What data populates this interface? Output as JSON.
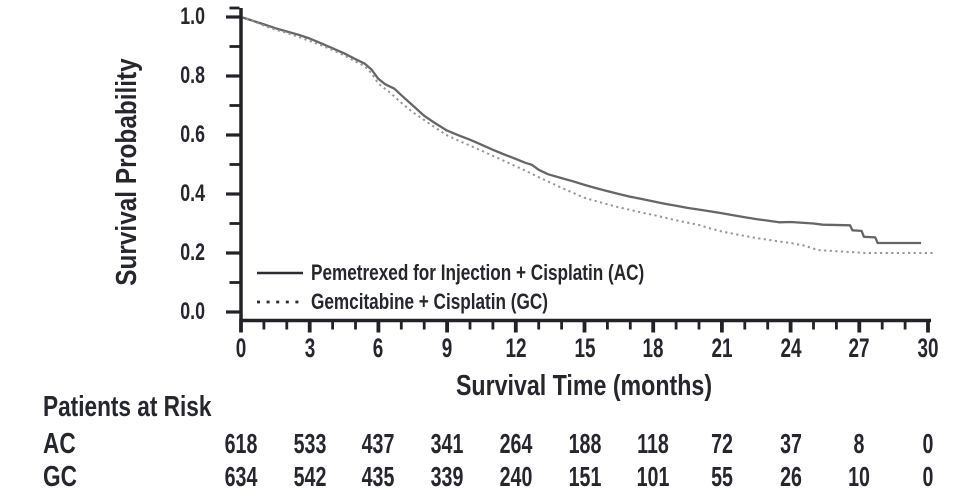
{
  "figure": {
    "background": "#ffffff",
    "text_color": "#26262e",
    "axis_color": "#222229",
    "legend_swatch_color": "#2b2b33"
  },
  "chart_data": {
    "type": "line",
    "subtype": "kaplan-meier-survival",
    "title": "",
    "xlabel": "Survival Time (months)",
    "ylabel": "Survival Probability",
    "xlim": [
      0,
      30
    ],
    "ylim": [
      0.0,
      1.0
    ],
    "grid": false,
    "legend_position": "inside-lower-left",
    "x_major_ticks": [
      0,
      3,
      6,
      9,
      12,
      15,
      18,
      21,
      24,
      27,
      30
    ],
    "x_tick_labels": [
      "0",
      "3",
      "6",
      "9",
      "12",
      "15",
      "18",
      "21",
      "24",
      "27",
      "30"
    ],
    "x_minor_tick_step": 1,
    "y_major_ticks": [
      0.0,
      0.2,
      0.4,
      0.6,
      0.8,
      1.0
    ],
    "y_tick_labels": [
      "0.0",
      "0.2",
      "0.4",
      "0.6",
      "0.8",
      "1.0"
    ],
    "y_minor_tick_step": 0.1,
    "series": [
      {
        "name": "Pemetrexed for Injection + Cisplatin (AC)",
        "abbr": "AC",
        "line_style": "solid",
        "line_color": "#66666a",
        "points": [
          [
            0,
            1.0
          ],
          [
            0.4,
            0.99
          ],
          [
            1,
            0.975
          ],
          [
            1.5,
            0.962
          ],
          [
            2,
            0.951
          ],
          [
            2.5,
            0.94
          ],
          [
            3,
            0.927
          ],
          [
            3.5,
            0.911
          ],
          [
            4,
            0.894
          ],
          [
            4.5,
            0.877
          ],
          [
            5,
            0.857
          ],
          [
            5.4,
            0.842
          ],
          [
            5.7,
            0.822
          ],
          [
            6,
            0.79
          ],
          [
            6.3,
            0.772
          ],
          [
            6.7,
            0.757
          ],
          [
            7,
            0.735
          ],
          [
            7.5,
            0.7
          ],
          [
            8,
            0.665
          ],
          [
            8.5,
            0.639
          ],
          [
            9,
            0.615
          ],
          [
            9.5,
            0.599
          ],
          [
            10,
            0.584
          ],
          [
            10.5,
            0.567
          ],
          [
            11,
            0.55
          ],
          [
            11.5,
            0.534
          ],
          [
            12,
            0.519
          ],
          [
            12.4,
            0.506
          ],
          [
            12.7,
            0.499
          ],
          [
            13,
            0.482
          ],
          [
            13.4,
            0.467
          ],
          [
            14,
            0.454
          ],
          [
            14.5,
            0.443
          ],
          [
            15,
            0.431
          ],
          [
            15.5,
            0.42
          ],
          [
            16,
            0.41
          ],
          [
            16.5,
            0.4
          ],
          [
            17,
            0.391
          ],
          [
            17.5,
            0.383
          ],
          [
            18,
            0.375
          ],
          [
            18.5,
            0.367
          ],
          [
            19,
            0.36
          ],
          [
            19.5,
            0.353
          ],
          [
            20,
            0.347
          ],
          [
            20.5,
            0.341
          ],
          [
            21,
            0.335
          ],
          [
            21.5,
            0.328
          ],
          [
            22,
            0.321
          ],
          [
            22.5,
            0.315
          ],
          [
            23,
            0.31
          ],
          [
            23.5,
            0.304
          ],
          [
            24,
            0.305
          ],
          [
            25,
            0.3
          ],
          [
            25.4,
            0.296
          ],
          [
            26.6,
            0.294
          ],
          [
            26.7,
            0.277
          ],
          [
            27.1,
            0.275
          ],
          [
            27.2,
            0.255
          ],
          [
            27.7,
            0.253
          ],
          [
            27.8,
            0.234
          ],
          [
            29.7,
            0.234
          ]
        ]
      },
      {
        "name": "Gemcitabine + Cisplatin (GC)",
        "abbr": "GC",
        "line_style": "dotted",
        "line_color": "#96969a",
        "points": [
          [
            0,
            1.0
          ],
          [
            0.5,
            0.987
          ],
          [
            1,
            0.971
          ],
          [
            1.5,
            0.957
          ],
          [
            2,
            0.946
          ],
          [
            2.5,
            0.933
          ],
          [
            3,
            0.919
          ],
          [
            3.5,
            0.904
          ],
          [
            4,
            0.888
          ],
          [
            4.5,
            0.87
          ],
          [
            5,
            0.849
          ],
          [
            5.4,
            0.833
          ],
          [
            5.7,
            0.809
          ],
          [
            6,
            0.774
          ],
          [
            6.5,
            0.744
          ],
          [
            7,
            0.709
          ],
          [
            7.5,
            0.677
          ],
          [
            8,
            0.651
          ],
          [
            8.5,
            0.624
          ],
          [
            9,
            0.599
          ],
          [
            9.5,
            0.581
          ],
          [
            10,
            0.564
          ],
          [
            10.5,
            0.547
          ],
          [
            11,
            0.529
          ],
          [
            11.5,
            0.512
          ],
          [
            12,
            0.494
          ],
          [
            12.5,
            0.476
          ],
          [
            13,
            0.457
          ],
          [
            13.5,
            0.439
          ],
          [
            14,
            0.421
          ],
          [
            14.5,
            0.404
          ],
          [
            15,
            0.387
          ],
          [
            15.5,
            0.376
          ],
          [
            16,
            0.365
          ],
          [
            16.5,
            0.355
          ],
          [
            17,
            0.346
          ],
          [
            17.5,
            0.337
          ],
          [
            18,
            0.329
          ],
          [
            18.5,
            0.32
          ],
          [
            19,
            0.311
          ],
          [
            19.5,
            0.303
          ],
          [
            20,
            0.295
          ],
          [
            20.5,
            0.283
          ],
          [
            21,
            0.273
          ],
          [
            21.5,
            0.265
          ],
          [
            22,
            0.258
          ],
          [
            22.5,
            0.251
          ],
          [
            23,
            0.245
          ],
          [
            23.5,
            0.239
          ],
          [
            24,
            0.234
          ],
          [
            24.6,
            0.225
          ],
          [
            25.2,
            0.21
          ],
          [
            26,
            0.206
          ],
          [
            27.3,
            0.2
          ],
          [
            30.2,
            0.2
          ]
        ]
      }
    ],
    "at_risk_table": {
      "title": "Patients at Risk",
      "time_points": [
        0,
        3,
        6,
        9,
        12,
        15,
        18,
        21,
        24,
        27,
        30
      ],
      "rows": [
        {
          "label": "AC",
          "values": [
            "618",
            "533",
            "437",
            "341",
            "264",
            "188",
            "118",
            "72",
            "37",
            "8",
            "0"
          ]
        },
        {
          "label": "GC",
          "values": [
            "634",
            "542",
            "435",
            "339",
            "240",
            "151",
            "101",
            "55",
            "26",
            "10",
            "0"
          ]
        }
      ]
    }
  }
}
